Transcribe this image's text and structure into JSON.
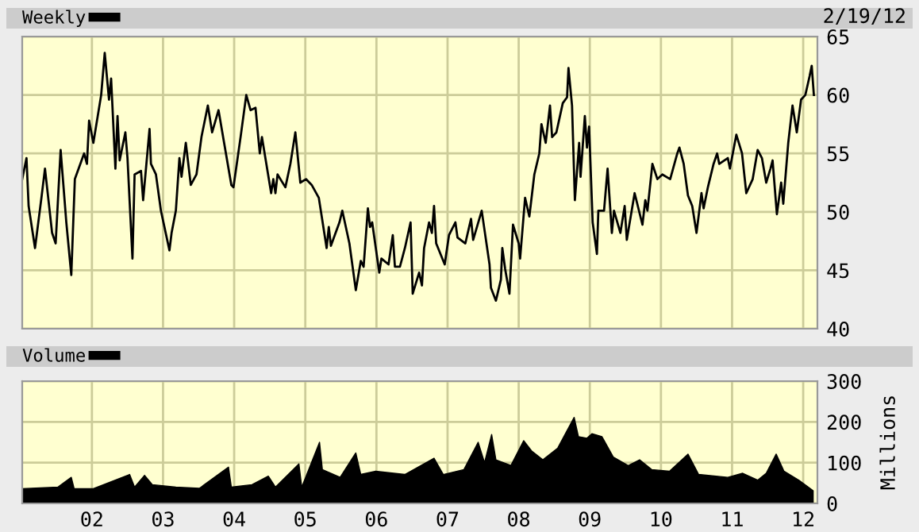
{
  "chart_data": [
    {
      "type": "line",
      "x": [
        2001.02,
        2001.08,
        2001.11,
        2001.2,
        2001.29,
        2001.34,
        2001.44,
        2001.49,
        2001.56,
        2001.64,
        2001.71,
        2001.76,
        2001.89,
        2001.93,
        2001.96,
        2002.02,
        2002.13,
        2002.18,
        2002.24,
        2002.27,
        2002.33,
        2002.36,
        2002.39,
        2002.47,
        2002.5,
        2002.57,
        2002.6,
        2002.69,
        2002.72,
        2002.81,
        2002.83,
        2002.9,
        2002.97,
        2003.09,
        2003.12,
        2003.18,
        2003.23,
        2003.26,
        2003.32,
        2003.39,
        2003.47,
        2003.54,
        2003.63,
        2003.69,
        2003.78,
        2003.85,
        2003.96,
        2003.99,
        2004.09,
        2004.17,
        2004.23,
        2004.3,
        2004.36,
        2004.39,
        2004.52,
        2004.55,
        2004.58,
        2004.61,
        2004.72,
        2004.79,
        2004.86,
        2004.93,
        2005.01,
        2005.09,
        2005.19,
        2005.3,
        2005.33,
        2005.36,
        2005.48,
        2005.52,
        2005.62,
        2005.71,
        2005.78,
        2005.82,
        2005.88,
        2005.91,
        2005.94,
        2006.04,
        2006.07,
        2006.17,
        2006.23,
        2006.26,
        2006.33,
        2006.4,
        2006.48,
        2006.51,
        2006.6,
        2006.64,
        2006.67,
        2006.74,
        2006.78,
        2006.81,
        2006.84,
        2006.96,
        2007.02,
        2007.11,
        2007.14,
        2007.25,
        2007.33,
        2007.36,
        2007.48,
        2007.59,
        2007.61,
        2007.68,
        2007.75,
        2007.77,
        2007.81,
        2007.87,
        2007.92,
        2008.0,
        2008.02,
        2008.09,
        2008.15,
        2008.22,
        2008.29,
        2008.32,
        2008.38,
        2008.44,
        2008.47,
        2008.53,
        2008.62,
        2008.68,
        2008.7,
        2008.75,
        2008.79,
        2008.85,
        2008.87,
        2008.93,
        2008.96,
        2008.99,
        2009.04,
        2009.1,
        2009.12,
        2009.2,
        2009.25,
        2009.31,
        2009.34,
        2009.43,
        2009.49,
        2009.52,
        2009.63,
        2009.74,
        2009.78,
        2009.81,
        2009.88,
        2009.95,
        2010.02,
        2010.13,
        2010.23,
        2010.26,
        2010.32,
        2010.38,
        2010.44,
        2010.5,
        2010.57,
        2010.6,
        2010.66,
        2010.74,
        2010.79,
        2010.82,
        2010.94,
        2010.97,
        2011.06,
        2011.14,
        2011.2,
        2011.29,
        2011.36,
        2011.42,
        2011.48,
        2011.54,
        2011.57,
        2011.63,
        2011.69,
        2011.72,
        2011.79,
        2011.85,
        2011.91,
        2011.97,
        2012.03,
        2012.09,
        2012.12,
        2012.15
      ],
      "series": [
        {
          "name": "Weekly",
          "color": "#000000",
          "values": [
            52.8,
            54.6,
            50.5,
            46.9,
            51.2,
            53.7,
            48.2,
            47.3,
            55.3,
            49.1,
            44.6,
            52.8,
            55.0,
            54.1,
            57.8,
            55.9,
            60.0,
            63.6,
            59.6,
            61.4,
            53.7,
            58.2,
            54.4,
            56.8,
            54.6,
            46.0,
            53.2,
            53.5,
            51.0,
            57.1,
            54.1,
            53.2,
            50.1,
            46.7,
            48.2,
            50.1,
            54.6,
            53.0,
            55.9,
            52.3,
            53.2,
            56.4,
            59.1,
            56.8,
            58.7,
            56.2,
            52.3,
            52.1,
            56.4,
            60.0,
            58.7,
            58.9,
            55.0,
            56.4,
            51.6,
            52.8,
            51.6,
            53.2,
            52.1,
            54.1,
            56.8,
            52.5,
            52.8,
            52.3,
            51.2,
            46.9,
            48.7,
            47.1,
            49.1,
            50.1,
            47.3,
            43.3,
            45.8,
            45.3,
            50.3,
            48.7,
            49.1,
            44.8,
            46.0,
            45.5,
            48.0,
            45.3,
            45.3,
            46.9,
            49.1,
            43.0,
            44.8,
            43.7,
            46.9,
            49.1,
            48.2,
            50.5,
            47.3,
            45.5,
            48.0,
            49.1,
            47.8,
            47.3,
            49.4,
            47.6,
            50.1,
            45.5,
            43.5,
            42.4,
            44.2,
            46.9,
            45.1,
            43.0,
            48.9,
            47.3,
            46.0,
            51.2,
            49.6,
            53.2,
            55.0,
            57.5,
            55.9,
            59.1,
            56.4,
            56.8,
            59.3,
            59.8,
            62.3,
            59.1,
            51.0,
            55.9,
            53.0,
            58.2,
            55.5,
            57.3,
            49.1,
            46.4,
            50.1,
            50.1,
            53.7,
            48.2,
            50.1,
            48.2,
            50.5,
            47.6,
            51.6,
            48.9,
            51.0,
            50.1,
            54.1,
            52.8,
            53.2,
            52.8,
            55.0,
            55.5,
            54.1,
            51.4,
            50.5,
            48.2,
            51.6,
            50.3,
            52.1,
            54.1,
            55.0,
            54.1,
            54.6,
            53.7,
            56.6,
            55.0,
            51.6,
            52.8,
            55.3,
            54.6,
            52.5,
            53.7,
            54.4,
            49.8,
            52.5,
            50.7,
            55.9,
            59.1,
            56.8,
            59.6,
            60.0,
            61.6,
            62.5,
            60.0
          ]
        }
      ],
      "xlim": [
        2001.02,
        2012.2
      ],
      "xticks": [
        {
          "value": 2002,
          "label": null
        },
        {
          "value": 2003,
          "label": null
        },
        {
          "value": 2004,
          "label": null
        },
        {
          "value": 2005,
          "label": null
        },
        {
          "value": 2006,
          "label": null
        },
        {
          "value": 2007,
          "label": null
        },
        {
          "value": 2008,
          "label": null
        },
        {
          "value": 2009,
          "label": null
        },
        {
          "value": 2010,
          "label": null
        },
        {
          "value": 2011,
          "label": null
        },
        {
          "value": 2012,
          "label": null
        }
      ],
      "ylim": [
        40,
        65
      ],
      "yticks": [
        40,
        45,
        50,
        55,
        60,
        65
      ],
      "tick_labels": "y",
      "grid": true,
      "legend": "top left",
      "annotations": [
        "2/19/12"
      ]
    },
    {
      "type": "area",
      "x": [
        2001.02,
        2001.52,
        2001.71,
        2001.75,
        2002.02,
        2002.53,
        2002.6,
        2002.74,
        2002.85,
        2003.18,
        2003.51,
        2003.92,
        2003.96,
        2004.25,
        2004.48,
        2004.58,
        2004.91,
        2004.95,
        2005.2,
        2005.24,
        2005.49,
        2005.71,
        2005.78,
        2005.99,
        2006.4,
        2006.81,
        2006.94,
        2007.23,
        2007.43,
        2007.52,
        2007.62,
        2007.68,
        2007.89,
        2008.07,
        2008.18,
        2008.34,
        2008.55,
        2008.78,
        2008.84,
        2008.96,
        2009.03,
        2009.17,
        2009.33,
        2009.54,
        2009.7,
        2009.87,
        2010.12,
        2010.38,
        2010.53,
        2010.94,
        2011.15,
        2011.36,
        2011.48,
        2011.62,
        2011.73,
        2011.94,
        2012.14
      ],
      "series": [
        {
          "name": "Volume",
          "color": "#000000",
          "values": [
            36,
            40,
            64,
            36,
            36,
            71,
            40,
            69,
            46,
            40,
            37,
            89,
            40,
            46,
            67,
            40,
            97,
            40,
            150,
            83,
            64,
            124,
            71,
            79,
            71,
            111,
            71,
            83,
            150,
            100,
            169,
            107,
            93,
            154,
            129,
            107,
            136,
            211,
            164,
            160,
            171,
            164,
            114,
            93,
            107,
            83,
            79,
            121,
            71,
            64,
            74,
            57,
            74,
            121,
            79,
            57,
            31
          ]
        }
      ],
      "xlim": [
        2001.02,
        2012.2
      ],
      "xticks": [
        {
          "value": 2002,
          "label": "02"
        },
        {
          "value": 2003,
          "label": "03"
        },
        {
          "value": 2004,
          "label": "04"
        },
        {
          "value": 2005,
          "label": "05"
        },
        {
          "value": 2006,
          "label": "06"
        },
        {
          "value": 2007,
          "label": "07"
        },
        {
          "value": 2008,
          "label": "08"
        },
        {
          "value": 2009,
          "label": "09"
        },
        {
          "value": 2010,
          "label": "10"
        },
        {
          "value": 2011,
          "label": "11"
        },
        {
          "value": 2012,
          "label": "12"
        }
      ],
      "ylim": [
        0,
        300
      ],
      "yticks": [
        0,
        100,
        200,
        300
      ],
      "ylabel": "Millions",
      "grid": true,
      "legend": "top left"
    }
  ]
}
